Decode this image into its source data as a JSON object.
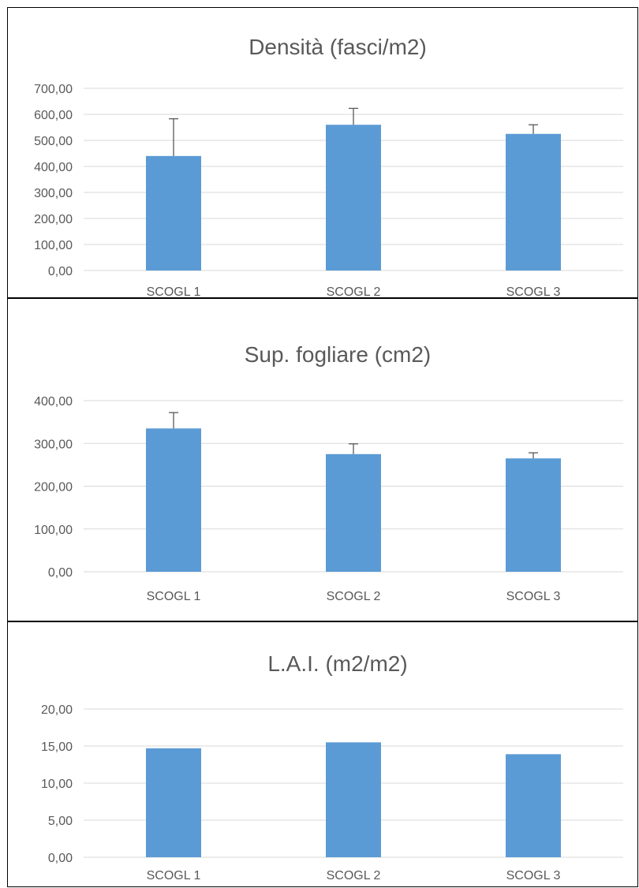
{
  "chart_data": [
    {
      "type": "bar",
      "title": "Densità (fasci/m2)",
      "categories": [
        "SCOGL 1",
        "SCOGL 2",
        "SCOGL 3"
      ],
      "values": [
        440,
        560,
        525
      ],
      "error_plus": [
        143,
        63,
        35
      ],
      "ylim": [
        0,
        700
      ],
      "yticks": [
        "0,00",
        "100,00",
        "200,00",
        "300,00",
        "400,00",
        "500,00",
        "600,00",
        "700,00"
      ],
      "grid": true,
      "bar_color": "#5b9bd5"
    },
    {
      "type": "bar",
      "title": "Sup. fogliare (cm2)",
      "categories": [
        "SCOGL 1",
        "SCOGL 2",
        "SCOGL 3"
      ],
      "values": [
        335,
        275,
        265
      ],
      "error_plus": [
        37,
        24,
        13
      ],
      "ylim": [
        0,
        400
      ],
      "yticks": [
        "0,00",
        "100,00",
        "200,00",
        "300,00",
        "400,00"
      ],
      "grid": true,
      "bar_color": "#5b9bd5"
    },
    {
      "type": "bar",
      "title": "L.A.I. (m2/m2)",
      "categories": [
        "SCOGL 1",
        "SCOGL 2",
        "SCOGL 3"
      ],
      "values": [
        14.7,
        15.5,
        13.9
      ],
      "ylim": [
        0,
        20
      ],
      "yticks": [
        "0,00",
        "5,00",
        "10,00",
        "15,00",
        "20,00"
      ],
      "grid": true,
      "bar_color": "#5b9bd5"
    }
  ]
}
